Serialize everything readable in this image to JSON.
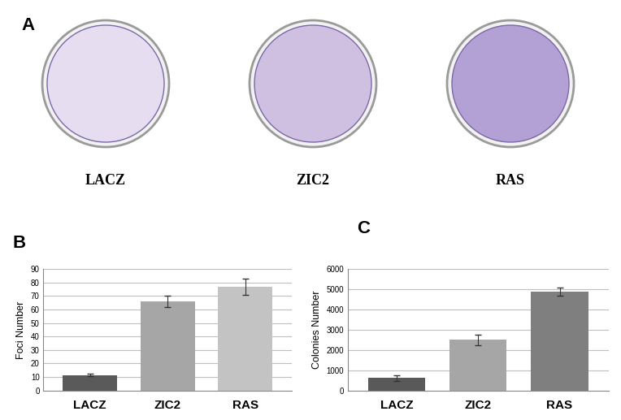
{
  "images": {
    "title": "A",
    "labels": [
      "LACZ",
      "ZIC2",
      "RAS"
    ]
  },
  "chart_data": [
    {
      "type": "bar",
      "title": "B",
      "y_label": "Foci Number",
      "categories": [
        "LACZ",
        "ZIC2",
        "RAS"
      ],
      "values": [
        11.5,
        66,
        76.5
      ],
      "errors": [
        1,
        4,
        6
      ],
      "colors": [
        "#5a5a5a",
        "#a6a6a6",
        "#c3c3c3"
      ],
      "ylim": [
        0,
        90
      ],
      "yticks": [
        0,
        10,
        20,
        30,
        40,
        50,
        60,
        70,
        80,
        90
      ],
      "grid": true
    },
    {
      "type": "bar",
      "title": "C",
      "y_label": "Colonies Number",
      "categories": [
        "LACZ",
        "ZIC2",
        "RAS"
      ],
      "values": [
        620,
        2500,
        4870
      ],
      "errors": [
        150,
        270,
        200
      ],
      "colors": [
        "#595959",
        "#a6a6a6",
        "#7f7f7f"
      ],
      "ylim": [
        0,
        6000
      ],
      "yticks": [
        0,
        1000,
        2000,
        3000,
        4000,
        5000,
        6000
      ],
      "grid": true
    }
  ]
}
